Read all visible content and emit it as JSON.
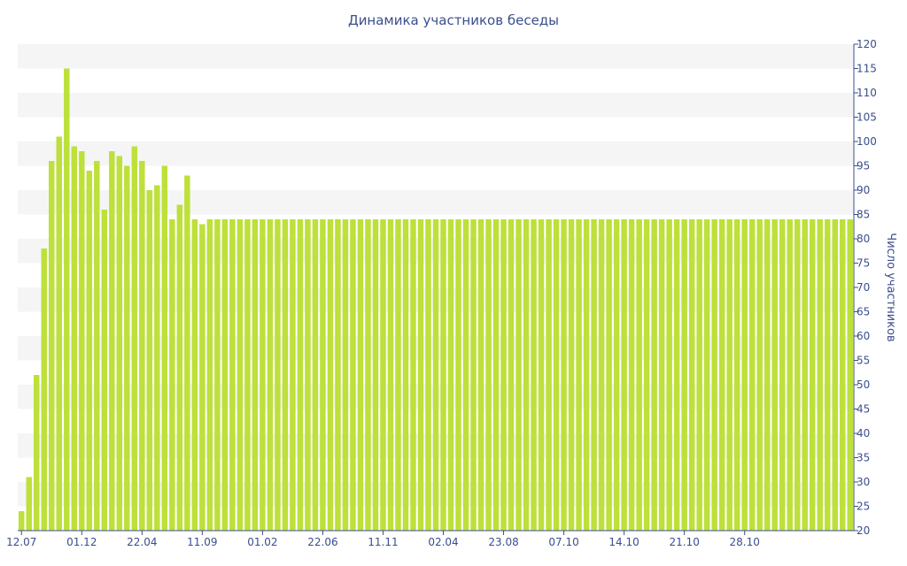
{
  "chart_data": {
    "type": "bar",
    "title": "Динамика участников беседы",
    "ylabel": "Число участников",
    "xlabel": "",
    "ylim": [
      20,
      120
    ],
    "yticks": [
      20,
      25,
      30,
      35,
      40,
      45,
      50,
      55,
      60,
      65,
      70,
      75,
      80,
      85,
      90,
      95,
      100,
      105,
      110,
      115,
      120
    ],
    "y_axis_position": "right",
    "grid": "alternating horizontal bands",
    "colors": {
      "bar": "#bde03a",
      "band": "#f5f5f5",
      "text": "#3a4e8c",
      "axis": "#3a4e8c"
    },
    "x_tick_labels": [
      {
        "index": 0,
        "label": "12.07"
      },
      {
        "index": 8,
        "label": "01.12"
      },
      {
        "index": 16,
        "label": "22.04"
      },
      {
        "index": 24,
        "label": "11.09"
      },
      {
        "index": 32,
        "label": "01.02"
      },
      {
        "index": 40,
        "label": "22.06"
      },
      {
        "index": 48,
        "label": "11.11"
      },
      {
        "index": 56,
        "label": "02.04"
      },
      {
        "index": 64,
        "label": "23.08"
      },
      {
        "index": 72,
        "label": "07.10"
      },
      {
        "index": 80,
        "label": "14.10"
      },
      {
        "index": 88,
        "label": "21.10"
      },
      {
        "index": 96,
        "label": "28.10"
      }
    ],
    "values": [
      24,
      31,
      52,
      78,
      96,
      101,
      115,
      99,
      98,
      94,
      96,
      86,
      98,
      97,
      95,
      99,
      96,
      90,
      91,
      95,
      84,
      87,
      93,
      84,
      83,
      84,
      84,
      84,
      84,
      84,
      84,
      84,
      84,
      84,
      84,
      84,
      84,
      84,
      84,
      84,
      84,
      84,
      84,
      84,
      84,
      84,
      84,
      84,
      84,
      84,
      84,
      84,
      84,
      84,
      84,
      84,
      84,
      84,
      84,
      84,
      84,
      84,
      84,
      84,
      84,
      84,
      84,
      84,
      84,
      84,
      84,
      84,
      84,
      84,
      84,
      84,
      84,
      84,
      84,
      84,
      84,
      84,
      84,
      84,
      84,
      84,
      84,
      84,
      84,
      84,
      84,
      84,
      84,
      84,
      84,
      84,
      84,
      84,
      84,
      84,
      84,
      84,
      84,
      84,
      84,
      84,
      84,
      84,
      84,
      84,
      84
    ]
  }
}
